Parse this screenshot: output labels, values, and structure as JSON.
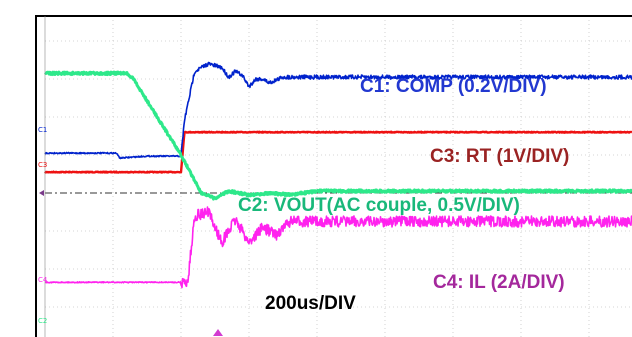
{
  "colors": {
    "background": "#ffffff",
    "grid": "#c8c8c8",
    "border": "#000000",
    "c1": "#0022cc",
    "c2": "#2ee88a",
    "c3": "#ee1111",
    "c4": "#ff22ee",
    "c1_label": "#2238d0",
    "c2_label": "#19b87a",
    "c3_label": "#9a2323",
    "c4_label": "#a4289c"
  },
  "labels": {
    "c1": "C1: COMP (0.2V/DIV)",
    "c3": "C3: RT (1V/DIV)",
    "c2": "C2: VOUT(AC couple, 0.5V/DIV)",
    "c4": "C4: IL (2A/DIV)",
    "timebase": "200us/DIV"
  },
  "markers": {
    "c1": "C1",
    "c3": "C3",
    "c4": "C4",
    "c2": "C2"
  },
  "chart_data": {
    "type": "line",
    "title": "",
    "xlabel": "200us/DIV",
    "ylabel": "",
    "grid": true,
    "x_divisions": 10,
    "y_divisions": 8,
    "series": [
      {
        "name": "C1: COMP (0.2V/DIV)",
        "x": [
          0,
          1.05,
          1.1,
          1.5,
          2.0,
          2.05,
          2.2,
          2.4,
          2.6,
          2.7,
          2.8,
          2.9,
          3.0,
          3.1,
          3.2,
          3.3,
          3.5,
          4.0,
          5.0,
          6.0,
          7.0,
          8.0,
          9.0,
          10.0
        ],
        "y": [
          1.05,
          1.05,
          0.92,
          0.97,
          0.97,
          1.9,
          3.2,
          3.4,
          3.3,
          3.05,
          3.2,
          3.1,
          2.8,
          3.0,
          3.0,
          2.9,
          3.05,
          3.05,
          3.05,
          3.05,
          3.05,
          3.05,
          3.05,
          3.05
        ]
      },
      {
        "name": "C2: VOUT(AC couple, 0.5V/DIV)",
        "x": [
          0,
          1.2,
          1.3,
          2.0,
          2.3,
          2.5,
          2.7,
          3.0,
          3.3,
          3.6,
          4.0,
          5.0,
          6.0,
          7.0,
          8.0,
          9.0,
          10.0
        ],
        "y": [
          3.15,
          3.15,
          3.0,
          1.0,
          0.0,
          -0.15,
          0.05,
          -0.05,
          0.0,
          -0.05,
          0.05,
          0.05,
          0.05,
          0.05,
          0.05,
          0.05,
          0.05
        ]
      },
      {
        "name": "C3: RT (1V/DIV)",
        "x": [
          0,
          2.0,
          2.05,
          10.0
        ],
        "y": [
          0.55,
          0.55,
          1.6,
          1.6
        ]
      },
      {
        "name": "C4: IL (2A/DIV)",
        "x": [
          0,
          2.1,
          2.2,
          2.4,
          2.6,
          2.8,
          3.0,
          3.2,
          3.4,
          3.6,
          4.0,
          5.0,
          6.0,
          7.0,
          8.0,
          9.0,
          10.0
        ],
        "y": [
          -2.35,
          -2.35,
          -0.6,
          -0.5,
          -1.3,
          -0.7,
          -1.3,
          -0.9,
          -1.1,
          -0.75,
          -0.75,
          -0.75,
          -0.75,
          -0.75,
          -0.75,
          -0.75,
          -0.75
        ]
      }
    ]
  }
}
